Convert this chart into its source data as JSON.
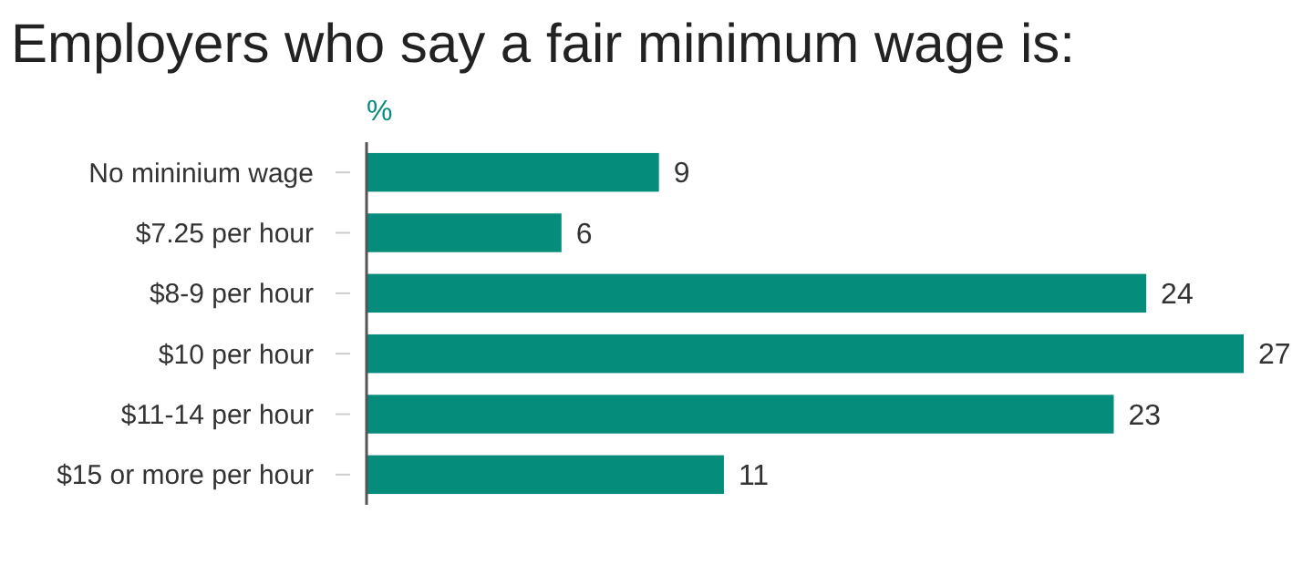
{
  "chart_data": {
    "type": "bar",
    "orientation": "horizontal",
    "title": "Employers who say a fair minimum wage is:",
    "xlabel": "%",
    "categories": [
      "No mininium wage",
      "$7.25 per hour",
      "$8-9 per hour",
      "$10 per hour",
      "$11-14 per hour",
      "$15 or more per hour"
    ],
    "values": [
      9,
      6,
      24,
      27,
      23,
      11
    ],
    "color": "#058c7a",
    "data_labels": true
  }
}
